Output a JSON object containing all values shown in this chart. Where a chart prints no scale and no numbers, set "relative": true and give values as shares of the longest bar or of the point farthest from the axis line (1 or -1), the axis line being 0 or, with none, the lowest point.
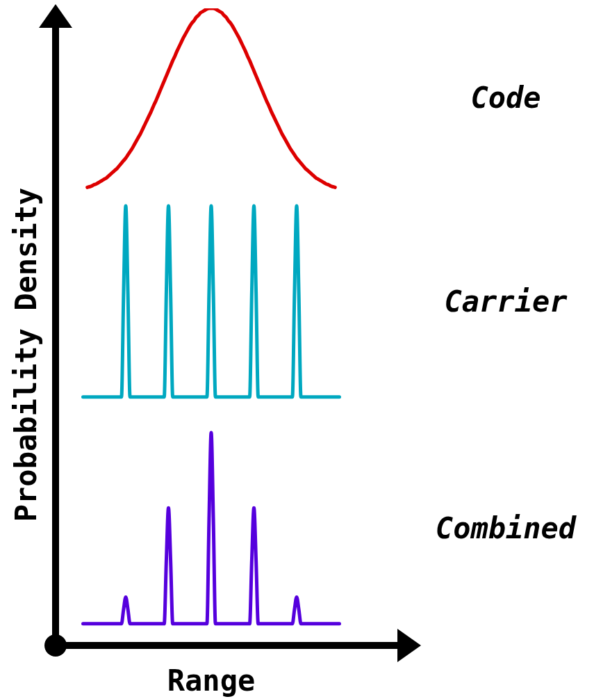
{
  "chart_data": {
    "type": "line",
    "relative": true,
    "xlabel": "Range",
    "ylabel": "Probability Density",
    "categories": [
      null,
      null,
      null,
      null,
      null,
      null,
      null,
      null,
      null,
      null,
      null,
      null,
      null,
      null,
      null,
      null,
      null,
      null,
      null,
      null,
      null,
      null,
      null,
      null,
      null,
      null,
      null,
      null,
      null,
      null,
      null,
      null,
      null,
      null,
      null,
      null,
      null,
      null,
      null,
      null,
      null,
      null,
      null,
      null,
      null,
      null,
      null,
      null,
      null,
      null,
      null,
      null,
      null,
      null,
      null,
      null,
      null,
      null,
      null,
      null,
      null,
      null,
      null,
      null,
      null,
      null,
      null,
      null,
      null,
      null,
      null,
      null,
      null,
      null,
      null,
      null,
      null,
      null,
      null,
      null,
      null,
      null,
      null,
      null,
      null,
      null,
      null,
      null,
      null,
      null,
      null,
      null,
      null,
      null,
      null,
      null,
      null,
      null,
      null,
      null,
      null,
      null,
      null,
      null,
      null,
      null,
      null,
      null,
      null,
      null,
      null,
      null,
      null,
      null,
      null,
      null,
      null,
      null,
      null,
      null,
      null
    ],
    "series": [
      {
        "name": "Code",
        "color": "#dd0000",
        "values": [
          null,
          null,
          0.719,
          0.72,
          0.721,
          0.723,
          0.724,
          0.726,
          0.728,
          0.73,
          0.732,
          0.734,
          0.737,
          0.74,
          0.743,
          0.746,
          0.749,
          0.753,
          0.757,
          0.761,
          0.765,
          0.77,
          0.775,
          0.78,
          0.786,
          0.792,
          0.798,
          0.804,
          0.811,
          0.818,
          0.825,
          0.832,
          0.839,
          0.847,
          0.854,
          0.862,
          0.87,
          0.878,
          0.886,
          0.894,
          0.902,
          0.91,
          0.918,
          0.925,
          0.933,
          0.94,
          0.947,
          0.954,
          0.96,
          0.966,
          0.972,
          0.977,
          0.981,
          0.986,
          0.989,
          0.993,
          0.995,
          0.997,
          0.999,
          1.0,
          1,
          1.0,
          0.999,
          0.997,
          0.995,
          0.993,
          0.989,
          0.986,
          0.981,
          0.977,
          0.972,
          0.966,
          0.96,
          0.954,
          0.947,
          0.94,
          0.933,
          0.925,
          0.918,
          0.91,
          0.902,
          0.894,
          0.886,
          0.878,
          0.87,
          0.862,
          0.854,
          0.847,
          0.839,
          0.832,
          0.825,
          0.818,
          0.811,
          0.804,
          0.798,
          0.792,
          0.786,
          0.78,
          0.775,
          0.77,
          0.765,
          0.761,
          0.757,
          0.753,
          0.749,
          0.746,
          0.743,
          0.74,
          0.737,
          0.734,
          0.732,
          0.73,
          0.728,
          0.726,
          0.724,
          0.723,
          0.721,
          0.72,
          0.719,
          null,
          null
        ]
      },
      {
        "name": "Carrier",
        "color": "#00a8c0",
        "values": [
          0.39,
          0.39,
          0.39,
          0.39,
          0.39,
          0.39,
          0.39,
          0.39,
          0.39,
          0.39,
          0.39,
          0.39,
          0.39,
          0.39,
          0.39,
          0.39,
          0.39,
          0.39,
          0.39,
          0.555,
          0.69,
          0.555,
          0.39,
          0.39,
          0.39,
          0.39,
          0.39,
          0.39,
          0.39,
          0.39,
          0.39,
          0.39,
          0.39,
          0.39,
          0.39,
          0.39,
          0.39,
          0.39,
          0.39,
          0.555,
          0.69,
          0.555,
          0.39,
          0.39,
          0.39,
          0.39,
          0.39,
          0.39,
          0.39,
          0.39,
          0.39,
          0.39,
          0.39,
          0.39,
          0.39,
          0.39,
          0.39,
          0.39,
          0.39,
          0.555,
          0.69,
          0.555,
          0.39,
          0.39,
          0.39,
          0.39,
          0.39,
          0.39,
          0.39,
          0.39,
          0.39,
          0.39,
          0.39,
          0.39,
          0.39,
          0.39,
          0.39,
          0.39,
          0.39,
          0.555,
          0.69,
          0.555,
          0.39,
          0.39,
          0.39,
          0.39,
          0.39,
          0.39,
          0.39,
          0.39,
          0.39,
          0.39,
          0.39,
          0.39,
          0.39,
          0.39,
          0.39,
          0.39,
          0.39,
          0.555,
          0.69,
          0.555,
          0.39,
          0.39,
          0.39,
          0.39,
          0.39,
          0.39,
          0.39,
          0.39,
          0.39,
          0.39,
          0.39,
          0.39,
          0.39,
          0.39,
          0.39,
          0.39,
          0.39,
          0.39,
          0.39
        ]
      },
      {
        "name": "Combined",
        "color": "#5500dd",
        "values": [
          0.034,
          0.034,
          0.034,
          0.034,
          0.034,
          0.034,
          0.034,
          0.034,
          0.034,
          0.034,
          0.034,
          0.034,
          0.034,
          0.034,
          0.034,
          0.034,
          0.034,
          0.034,
          0.034,
          0.057,
          0.076,
          0.057,
          0.034,
          0.034,
          0.034,
          0.034,
          0.034,
          0.034,
          0.034,
          0.034,
          0.034,
          0.034,
          0.034,
          0.034,
          0.034,
          0.034,
          0.034,
          0.034,
          0.034,
          0.134,
          0.216,
          0.134,
          0.034,
          0.034,
          0.034,
          0.034,
          0.034,
          0.034,
          0.034,
          0.034,
          0.034,
          0.034,
          0.034,
          0.034,
          0.034,
          0.034,
          0.034,
          0.034,
          0.034,
          0.199,
          0.334,
          0.199,
          0.034,
          0.034,
          0.034,
          0.034,
          0.034,
          0.034,
          0.034,
          0.034,
          0.034,
          0.034,
          0.034,
          0.034,
          0.034,
          0.034,
          0.034,
          0.034,
          0.034,
          0.134,
          0.216,
          0.134,
          0.034,
          0.034,
          0.034,
          0.034,
          0.034,
          0.034,
          0.034,
          0.034,
          0.034,
          0.034,
          0.034,
          0.034,
          0.034,
          0.034,
          0.034,
          0.034,
          0.034,
          0.057,
          0.076,
          0.057,
          0.034,
          0.034,
          0.034,
          0.034,
          0.034,
          0.034,
          0.034,
          0.034,
          0.034,
          0.034,
          0.034,
          0.034,
          0.034,
          0.034,
          0.034,
          0.034,
          0.034,
          0.034,
          0.034
        ]
      }
    ]
  }
}
